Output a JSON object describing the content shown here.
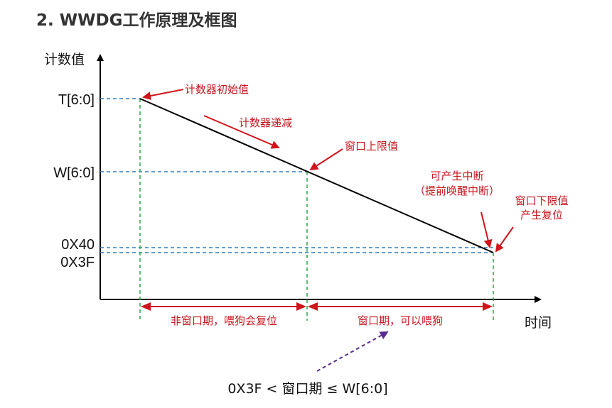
{
  "heading": "2. WWDG工作原理及框图",
  "axes": {
    "y_label": "计数值",
    "x_label": "时间"
  },
  "y_ticks": {
    "t": "T[6:0]",
    "w": "W[6:0]",
    "x40": "0X40",
    "x3f": "0X3F"
  },
  "annotations": {
    "initial_value": "计数器初始值",
    "decrement": "计数器递减",
    "window_upper": "窗口上限值",
    "interrupt_line1": "可产生中断",
    "interrupt_line2": "（提前唤醒中断）",
    "window_lower_line1": "窗口下限值",
    "window_lower_line2": "产生复位"
  },
  "periods": {
    "non_window": "非窗口期，喂狗会复位",
    "window": "窗口期，可以喂狗"
  },
  "formula": "0X3F  <  窗口期 ≤ W[6:0]",
  "colors": {
    "red": "#c8161d",
    "blue_dash": "#2f7fc1",
    "green_dash": "#2aa84a",
    "purple": "#5b2c8f"
  }
}
